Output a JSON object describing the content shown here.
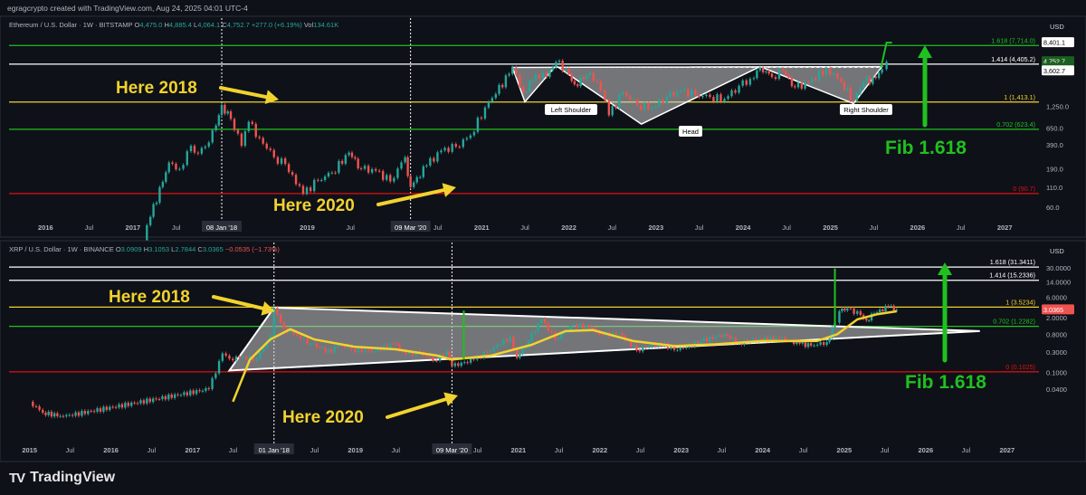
{
  "header": {
    "credit": "egragcrypto created with TradingView.com, Aug 24, 2025 04:01 UTC-4"
  },
  "brand": {
    "name": "TradingView"
  },
  "colors": {
    "background": "#0e1118",
    "up": "#26a69a",
    "down": "#ef5350",
    "annotation": "#f2d22e",
    "fib_green": "#20c020",
    "fib_red": "#e01010",
    "fib_white": "#ffffff",
    "pattern_fill": "#c8c8c8",
    "ma_line": "#f2d22e"
  },
  "chart_data": [
    {
      "type": "candlestick",
      "legend": {
        "symbol": "Ethereum / U.S. Dollar · 1W · BITSTAMP",
        "open": "4,475.0",
        "high": "4,885.4",
        "low": "4,064.1",
        "close": "4,752.7",
        "change": "+277.0 (+6.19%)",
        "volume": "134.61K",
        "ohlc_labels": [
          "O",
          "H",
          "L",
          "C",
          "Vol"
        ]
      },
      "scale": "log",
      "currency": "USD",
      "x_ticks": [
        "2016",
        "Jul",
        "2017",
        "Jul",
        "08 Jan '18",
        "2019",
        "Jul",
        "09 Mar '20",
        "Jul",
        "2021",
        "Jul",
        "2022",
        "Jul",
        "2023",
        "Jul",
        "2024",
        "Jul",
        "2025",
        "Jul",
        "2026",
        "Jul",
        "2027"
      ],
      "x_tick_dates": [
        "2016-01-01",
        "2016-07-01",
        "2017-01-01",
        "2017-07-01",
        "2018-01-08",
        "2019-01-01",
        "2019-07-01",
        "2020-03-09",
        "2020-07-01",
        "2021-01-01",
        "2021-07-01",
        "2022-01-01",
        "2022-07-01",
        "2023-01-01",
        "2023-07-01",
        "2024-01-01",
        "2024-07-01",
        "2025-01-01",
        "2025-07-01",
        "2026-01-01",
        "2026-07-01",
        "2027-01-01"
      ],
      "x_range": [
        "2015-08-01",
        "2027-06-01"
      ],
      "y_ticks": [
        "3,600.0",
        "1,250.0",
        "650.0",
        "390.0",
        "190.0",
        "110.0",
        "60.0"
      ],
      "y_tick_values": [
        3600,
        1250,
        650,
        390,
        190,
        110,
        60
      ],
      "y_range": [
        40,
        12000
      ],
      "fib_levels": [
        {
          "label": "1.618 (7,714.0)",
          "value": 7714,
          "color": "green"
        },
        {
          "label": "1.414 (4,405.2)",
          "value": 4405.2,
          "color": "white"
        },
        {
          "label": "1 (1,413.1)",
          "value": 1413.1,
          "color": "yellow"
        },
        {
          "label": "0.702 (623.4)",
          "value": 623.4,
          "color": "green"
        },
        {
          "label": "0 (90.7)",
          "value": 90.7,
          "color": "red"
        }
      ],
      "price_tags": [
        {
          "text": "8,401.1",
          "value": 8401.1
        },
        {
          "text": "4,752.7",
          "value": 4752.7
        },
        {
          "text": "15:58:36",
          "value": 3900
        },
        {
          "text": "3,602.7",
          "value": 3602.7
        }
      ],
      "candles": [
        {
          "d": "2016-01-01",
          "v": 1
        },
        {
          "d": "2016-07-01",
          "v": 12
        },
        {
          "d": "2017-01-01",
          "v": 8
        },
        {
          "d": "2017-03-15",
          "v": 45
        },
        {
          "d": "2017-06-01",
          "v": 230
        },
        {
          "d": "2017-07-15",
          "v": 190
        },
        {
          "d": "2017-09-01",
          "v": 380
        },
        {
          "d": "2017-10-01",
          "v": 300
        },
        {
          "d": "2017-11-15",
          "v": 420
        },
        {
          "d": "2017-12-15",
          "v": 700
        },
        {
          "d": "2018-01-08",
          "v": 1300
        },
        {
          "d": "2018-02-15",
          "v": 850
        },
        {
          "d": "2018-04-01",
          "v": 380
        },
        {
          "d": "2018-05-01",
          "v": 780
        },
        {
          "d": "2018-06-15",
          "v": 480
        },
        {
          "d": "2018-08-15",
          "v": 270
        },
        {
          "d": "2018-10-01",
          "v": 220
        },
        {
          "d": "2018-11-15",
          "v": 120
        },
        {
          "d": "2018-12-15",
          "v": 90
        },
        {
          "d": "2019-02-15",
          "v": 135
        },
        {
          "d": "2019-04-15",
          "v": 170
        },
        {
          "d": "2019-06-25",
          "v": 310
        },
        {
          "d": "2019-08-15",
          "v": 190
        },
        {
          "d": "2019-10-15",
          "v": 180
        },
        {
          "d": "2019-12-15",
          "v": 130
        },
        {
          "d": "2020-02-15",
          "v": 270
        },
        {
          "d": "2020-03-09",
          "v": 110
        },
        {
          "d": "2020-05-15",
          "v": 210
        },
        {
          "d": "2020-07-15",
          "v": 330
        },
        {
          "d": "2020-09-15",
          "v": 370
        },
        {
          "d": "2020-11-15",
          "v": 520
        },
        {
          "d": "2021-01-15",
          "v": 1200
        },
        {
          "d": "2021-03-01",
          "v": 1800
        },
        {
          "d": "2021-05-10",
          "v": 4000
        },
        {
          "d": "2021-06-25",
          "v": 1900
        },
        {
          "d": "2021-08-15",
          "v": 3200
        },
        {
          "d": "2021-09-30",
          "v": 3000
        },
        {
          "d": "2021-11-08",
          "v": 4700
        },
        {
          "d": "2021-12-20",
          "v": 3800
        },
        {
          "d": "2022-01-25",
          "v": 2400
        },
        {
          "d": "2022-03-30",
          "v": 3400
        },
        {
          "d": "2022-05-15",
          "v": 2000
        },
        {
          "d": "2022-06-18",
          "v": 950
        },
        {
          "d": "2022-08-15",
          "v": 1900
        },
        {
          "d": "2022-10-15",
          "v": 1300
        },
        {
          "d": "2022-12-15",
          "v": 1200
        },
        {
          "d": "2023-02-15",
          "v": 1650
        },
        {
          "d": "2023-04-15",
          "v": 2000
        },
        {
          "d": "2023-06-15",
          "v": 1750
        },
        {
          "d": "2023-08-15",
          "v": 1650
        },
        {
          "d": "2023-10-15",
          "v": 1550
        },
        {
          "d": "2023-12-15",
          "v": 2300
        },
        {
          "d": "2024-02-15",
          "v": 2900
        },
        {
          "d": "2024-03-12",
          "v": 4000
        },
        {
          "d": "2024-05-01",
          "v": 3000
        },
        {
          "d": "2024-06-15",
          "v": 3600
        },
        {
          "d": "2024-08-05",
          "v": 2200
        },
        {
          "d": "2024-10-01",
          "v": 2500
        },
        {
          "d": "2024-12-15",
          "v": 3900
        },
        {
          "d": "2025-02-15",
          "v": 2600
        },
        {
          "d": "2025-04-08",
          "v": 1450
        },
        {
          "d": "2025-05-20",
          "v": 2600
        },
        {
          "d": "2025-07-10",
          "v": 2900
        },
        {
          "d": "2025-08-05",
          "v": 3800
        },
        {
          "d": "2025-08-24",
          "v": 4752.7
        }
      ],
      "annotations": {
        "here_2018": "Here 2018",
        "here_2020": "Here 2020",
        "fib_target": "Fib 1.618",
        "left_shoulder": "Left Shoulder",
        "head": "Head",
        "right_shoulder": "Right Shoulder"
      }
    },
    {
      "type": "candlestick",
      "legend": {
        "symbol": "XRP / U.S. Dollar · 1W · BINANCE",
        "open": "3.0909",
        "high": "3.1053",
        "low": "2.7844",
        "close": "3.0365",
        "change": "−0.0535 (−1.73%)",
        "ohlc_labels": [
          "O",
          "H",
          "L",
          "C"
        ]
      },
      "scale": "log",
      "currency": "USD",
      "x_ticks": [
        "2015",
        "Jul",
        "2016",
        "Jul",
        "2017",
        "Jul",
        "01 Jan '18",
        "Jul",
        "2019",
        "Jul",
        "09 Mar '20",
        "Jul",
        "2021",
        "Jul",
        "2022",
        "Jul",
        "2023",
        "Jul",
        "2024",
        "Jul",
        "2025",
        "Jul",
        "2026",
        "Jul",
        "2027"
      ],
      "x_tick_dates": [
        "2015-01-01",
        "2015-07-01",
        "2016-01-01",
        "2016-07-01",
        "2017-01-01",
        "2017-07-01",
        "2018-01-01",
        "2018-07-01",
        "2019-01-01",
        "2019-07-01",
        "2020-03-09",
        "2020-07-01",
        "2021-01-01",
        "2021-07-01",
        "2022-01-01",
        "2022-07-01",
        "2023-01-01",
        "2023-07-01",
        "2024-01-01",
        "2024-07-01",
        "2025-01-01",
        "2025-07-01",
        "2026-01-01",
        "2026-07-01",
        "2027-01-01"
      ],
      "x_range": [
        "2014-10-01",
        "2027-06-01"
      ],
      "y_ticks": [
        "30.0000",
        "14.0000",
        "6.0000",
        "2.0000",
        "0.8000",
        "0.3000",
        "0.1000",
        "0.0400"
      ],
      "y_tick_values": [
        30,
        14,
        6,
        2,
        0.8,
        0.3,
        0.1,
        0.04
      ],
      "y_range": [
        0.0025,
        60
      ],
      "fib_levels": [
        {
          "label": "1.618 (31.3411)",
          "value": 31.3411,
          "color": "white"
        },
        {
          "label": "1.414 (15.2336)",
          "value": 15.2336,
          "color": "white"
        },
        {
          "label": "1 (3.5234)",
          "value": 3.5234,
          "color": "yellow"
        },
        {
          "label": "0.702 (1.2282)",
          "value": 1.2282,
          "color": "green"
        },
        {
          "label": "0 (0.1025)",
          "value": 0.1025,
          "color": "red"
        }
      ],
      "price_tags": [
        {
          "text": "3.0365",
          "value": 3.0365
        }
      ],
      "candles": [
        {
          "d": "2015-01-01",
          "v": 0.02
        },
        {
          "d": "2015-03-01",
          "v": 0.011
        },
        {
          "d": "2015-06-01",
          "v": 0.009
        },
        {
          "d": "2017-03-15",
          "v": 0.04
        },
        {
          "d": "2017-05-15",
          "v": 0.28
        },
        {
          "d": "2017-06-15",
          "v": 0.21
        },
        {
          "d": "2017-08-15",
          "v": 0.23
        },
        {
          "d": "2017-10-15",
          "v": 0.21
        },
        {
          "d": "2017-12-15",
          "v": 0.75
        },
        {
          "d": "2018-01-01",
          "v": 3.4
        },
        {
          "d": "2018-02-15",
          "v": 1.1
        },
        {
          "d": "2018-04-15",
          "v": 0.75
        },
        {
          "d": "2018-06-15",
          "v": 0.48
        },
        {
          "d": "2018-09-15",
          "v": 0.29
        },
        {
          "d": "2018-10-15",
          "v": 0.46
        },
        {
          "d": "2018-12-15",
          "v": 0.35
        },
        {
          "d": "2019-03-15",
          "v": 0.31
        },
        {
          "d": "2019-06-20",
          "v": 0.48
        },
        {
          "d": "2019-08-15",
          "v": 0.27
        },
        {
          "d": "2019-10-15",
          "v": 0.29
        },
        {
          "d": "2019-12-15",
          "v": 0.19
        },
        {
          "d": "2020-02-15",
          "v": 0.31
        },
        {
          "d": "2020-03-09",
          "v": 0.14
        },
        {
          "d": "2020-06-15",
          "v": 0.2
        },
        {
          "d": "2020-08-15",
          "v": 0.3
        },
        {
          "d": "2020-11-25",
          "v": 0.7
        },
        {
          "d": "2020-12-25",
          "v": 0.22
        },
        {
          "d": "2021-02-15",
          "v": 0.55
        },
        {
          "d": "2021-04-14",
          "v": 1.85
        },
        {
          "d": "2021-06-15",
          "v": 0.6
        },
        {
          "d": "2021-09-06",
          "v": 1.35
        },
        {
          "d": "2021-11-15",
          "v": 1.15
        },
        {
          "d": "2022-01-15",
          "v": 0.75
        },
        {
          "d": "2022-03-30",
          "v": 0.85
        },
        {
          "d": "2022-06-15",
          "v": 0.33
        },
        {
          "d": "2022-09-20",
          "v": 0.5
        },
        {
          "d": "2022-12-15",
          "v": 0.34
        },
        {
          "d": "2023-03-30",
          "v": 0.55
        },
        {
          "d": "2023-07-14",
          "v": 0.8
        },
        {
          "d": "2023-09-15",
          "v": 0.5
        },
        {
          "d": "2023-12-15",
          "v": 0.62
        },
        {
          "d": "2024-03-15",
          "v": 0.65
        },
        {
          "d": "2024-06-15",
          "v": 0.48
        },
        {
          "d": "2024-08-05",
          "v": 0.43
        },
        {
          "d": "2024-10-15",
          "v": 0.52
        },
        {
          "d": "2024-11-20",
          "v": 1.5
        },
        {
          "d": "2024-12-10",
          "v": 2.8
        },
        {
          "d": "2025-01-15",
          "v": 3.3
        },
        {
          "d": "2025-03-15",
          "v": 2.3
        },
        {
          "d": "2025-04-10",
          "v": 1.7
        },
        {
          "d": "2025-05-15",
          "v": 2.5
        },
        {
          "d": "2025-07-18",
          "v": 3.6
        },
        {
          "d": "2025-08-24",
          "v": 3.0365
        }
      ],
      "annotations": {
        "here_2018": "Here 2018",
        "here_2020": "Here 2020",
        "fib_target": "Fib 1.618"
      }
    }
  ]
}
